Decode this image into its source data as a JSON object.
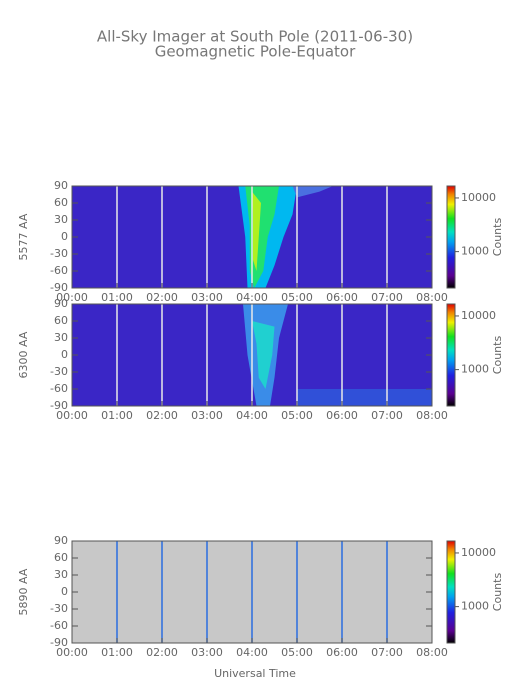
{
  "title": "All-Sky Imager at South Pole (2011-06-30)",
  "subtitle": "Geomagnetic Pole-Equator",
  "xlabel": "Universal Time",
  "chart_data": [
    {
      "type": "heatmap",
      "ylabel": "5577 AA",
      "colorbar_label": "Counts",
      "background": "#3a26c6",
      "grid_color": "#e8e8e8",
      "xlim": [
        0,
        8
      ],
      "xticks": [
        {
          "value": 0,
          "label": "00:00"
        },
        {
          "value": 1,
          "label": "01:00"
        },
        {
          "value": 2,
          "label": "02:00"
        },
        {
          "value": 3,
          "label": "03:00"
        },
        {
          "value": 4,
          "label": "04:00"
        },
        {
          "value": 5,
          "label": "05:00"
        },
        {
          "value": 6,
          "label": "06:00"
        },
        {
          "value": 7,
          "label": "07:00"
        },
        {
          "value": 8,
          "label": "08:00"
        }
      ],
      "ylim": [
        -90,
        90
      ],
      "yticks": [
        -90,
        -60,
        -30,
        0,
        30,
        60,
        90
      ],
      "clim": [
        210,
        16700
      ],
      "cticks": [
        1000,
        10000
      ],
      "log_colorbar": true
    },
    {
      "type": "heatmap",
      "ylabel": "6300 AA",
      "colorbar_label": "Counts",
      "background": "#3a26c6",
      "grid_color": "#e8e8e8",
      "xlim": [
        0,
        8
      ],
      "xticks": [
        {
          "value": 0,
          "label": "00:00"
        },
        {
          "value": 1,
          "label": "01:00"
        },
        {
          "value": 2,
          "label": "02:00"
        },
        {
          "value": 3,
          "label": "03:00"
        },
        {
          "value": 4,
          "label": "04:00"
        },
        {
          "value": 5,
          "label": "05:00"
        },
        {
          "value": 6,
          "label": "06:00"
        },
        {
          "value": 7,
          "label": "07:00"
        },
        {
          "value": 8,
          "label": "08:00"
        }
      ],
      "ylim": [
        -90,
        90
      ],
      "yticks": [
        -90,
        -60,
        -30,
        0,
        30,
        60,
        90
      ],
      "clim": [
        210,
        16700
      ],
      "cticks": [
        1000,
        10000
      ],
      "log_colorbar": true
    },
    {
      "type": "heatmap",
      "ylabel": "5890 AA",
      "colorbar_label": "Counts",
      "background": "#c8c8c8",
      "grid_color": "#2a6ee0",
      "xlim": [
        0,
        8
      ],
      "xticks": [
        {
          "value": 0,
          "label": "00:00"
        },
        {
          "value": 1,
          "label": "01:00"
        },
        {
          "value": 2,
          "label": "02:00"
        },
        {
          "value": 3,
          "label": "03:00"
        },
        {
          "value": 4,
          "label": "04:00"
        },
        {
          "value": 5,
          "label": "05:00"
        },
        {
          "value": 6,
          "label": "06:00"
        },
        {
          "value": 7,
          "label": "07:00"
        },
        {
          "value": 8,
          "label": "08:00"
        }
      ],
      "ylim": [
        -90,
        90
      ],
      "yticks": [
        -90,
        -60,
        -30,
        0,
        30,
        60,
        90
      ],
      "clim": [
        210,
        16700
      ],
      "cticks": [
        1000,
        10000
      ],
      "log_colorbar": true
    }
  ]
}
